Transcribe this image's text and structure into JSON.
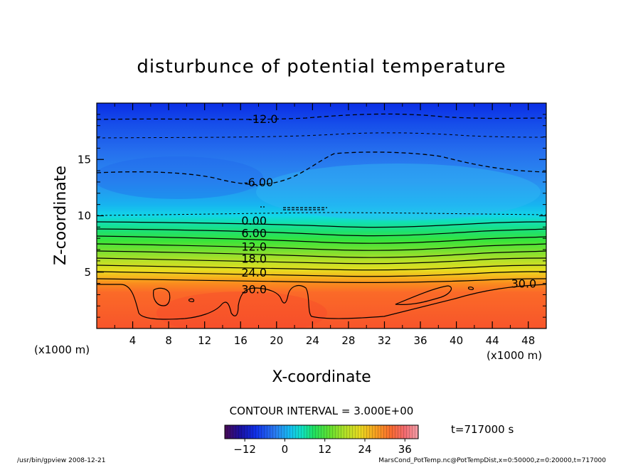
{
  "chart_data": {
    "type": "heatmap",
    "title": "disturbunce of potential temperature",
    "xlabel": "X-coordinate",
    "ylabel": "Z-coordinate",
    "x_unit_left": "(x1000 m)",
    "x_unit_right": "(x1000 m)",
    "xlim": [
      0,
      50
    ],
    "ylim": [
      0,
      20
    ],
    "x_ticks": [
      4,
      8,
      12,
      16,
      20,
      24,
      28,
      32,
      36,
      40,
      44,
      48
    ],
    "y_ticks": [
      5,
      10,
      15
    ],
    "contour_labels": [
      {
        "text": "-12.0",
        "value": -12,
        "x": 18.5,
        "z": 18.6
      },
      {
        "text": "-6.00",
        "value": -6,
        "x": 18.0,
        "z": 13.0
      },
      {
        "text": "0.00",
        "value": 0,
        "x": 17.5,
        "z": 9.6
      },
      {
        "text": "6.00",
        "value": 6,
        "x": 17.5,
        "z": 8.5
      },
      {
        "text": "12.0",
        "value": 12,
        "x": 17.5,
        "z": 7.3
      },
      {
        "text": "18.0",
        "value": 18,
        "x": 17.5,
        "z": 6.2
      },
      {
        "text": "24.0",
        "value": 24,
        "x": 17.5,
        "z": 5.0
      },
      {
        "text": "30.0",
        "value": 30,
        "x": 17.5,
        "z": 3.5
      },
      {
        "text": "30.0",
        "value": 30,
        "x": 47.5,
        "z": 4.0
      }
    ],
    "contour_interval_text": "CONTOUR INTERVAL = 3.000E+00",
    "colorbar": {
      "range": [
        -18,
        40
      ],
      "tick_labels": [
        "−12",
        "0",
        "12",
        "24",
        "36"
      ],
      "tick_values": [
        -12,
        0,
        12,
        24,
        36
      ]
    },
    "time_label": "t=717000 s"
  },
  "footer": {
    "left": "/usr/bin/gpview  2008-12-21",
    "right": "MarsCond_PotTemp.nc@PotTempDist,x=0:50000,z=0:20000,t=717000"
  }
}
